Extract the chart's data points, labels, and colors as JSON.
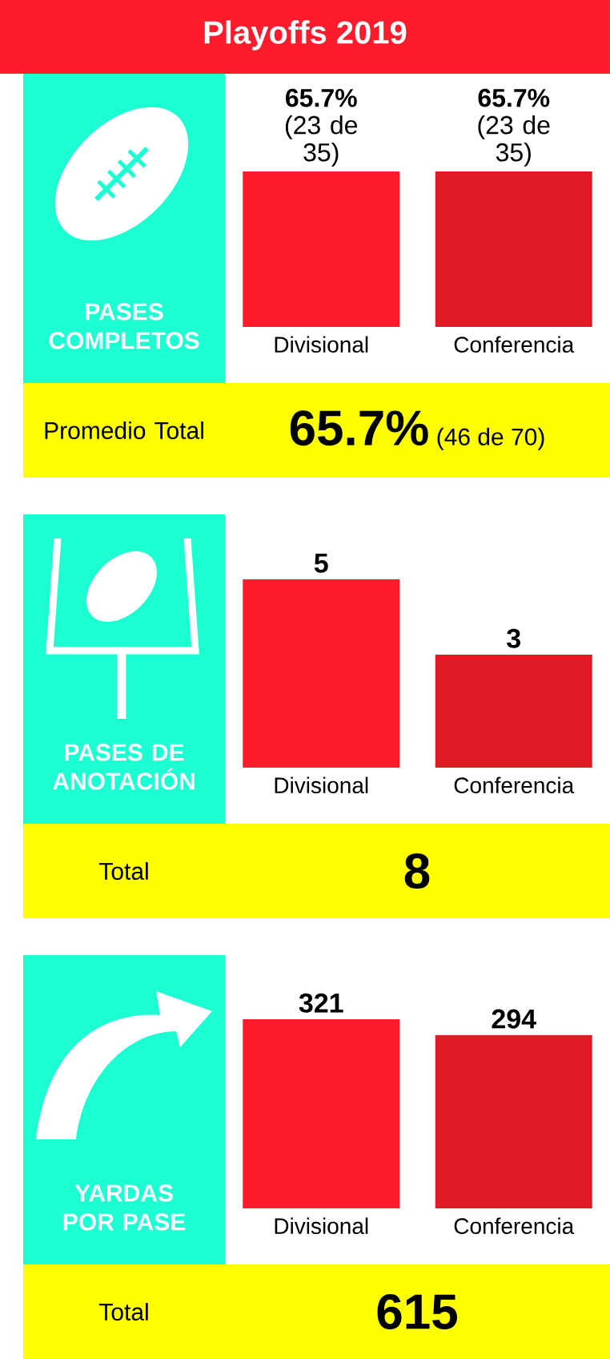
{
  "chart_data": [
    {
      "type": "bar",
      "title": "PASES COMPLETOS",
      "categories": [
        "Divisional",
        "Conferencia"
      ],
      "values": [
        65.7,
        65.7
      ],
      "colors": [
        "#fe1b2b",
        "#e01a24"
      ],
      "value_labels": [
        "**65.7%** (23 de 35)",
        "**65.7%** (23 de 35)"
      ],
      "tick_labels": "x",
      "annotations": [
        "Playoffs 2019",
        "Promedio Total",
        "65.7%",
        "(46 de 70)"
      ]
    },
    {
      "type": "bar",
      "title": "PASES DE ANOTACIÓN",
      "categories": [
        "Divisional",
        "Conferencia"
      ],
      "values": [
        5,
        3
      ],
      "colors": [
        "#fe1b2b",
        "#e01a24"
      ],
      "data_labels": true,
      "tick_labels": "x",
      "annotations": [
        "Total",
        "8"
      ]
    },
    {
      "type": "bar",
      "title": "YARDAS POR PASE",
      "categories": [
        "Divisional",
        "Conferencia"
      ],
      "values": [
        321,
        294
      ],
      "colors": [
        "#fe1b2b",
        "#e01a24"
      ],
      "data_labels": true,
      "tick_labels": "x",
      "annotations": [
        "Total",
        "615"
      ]
    }
  ]
}
